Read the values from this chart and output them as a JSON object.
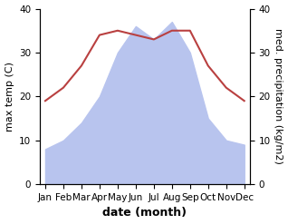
{
  "months": [
    "Jan",
    "Feb",
    "Mar",
    "Apr",
    "May",
    "Jun",
    "Jul",
    "Aug",
    "Sep",
    "Oct",
    "Nov",
    "Dec"
  ],
  "month_indices": [
    0,
    1,
    2,
    3,
    4,
    5,
    6,
    7,
    8,
    9,
    10,
    11
  ],
  "max_temp": [
    19,
    22,
    27,
    34,
    35,
    34,
    33,
    35,
    35,
    27,
    22,
    19
  ],
  "precipitation": [
    8,
    10,
    14,
    20,
    30,
    36,
    33,
    37,
    30,
    15,
    10,
    9
  ],
  "temp_color": "#b94040",
  "precip_fill_color": "#b8c4ee",
  "ylabel_left": "max temp (C)",
  "ylabel_right": "med. precipitation (kg/m2)",
  "xlabel": "date (month)",
  "ylim": [
    0,
    40
  ],
  "yticks": [
    0,
    10,
    20,
    30,
    40
  ],
  "bg_color": "#ffffff",
  "label_fontsize": 8,
  "tick_fontsize": 7.5,
  "xlabel_fontsize": 9
}
